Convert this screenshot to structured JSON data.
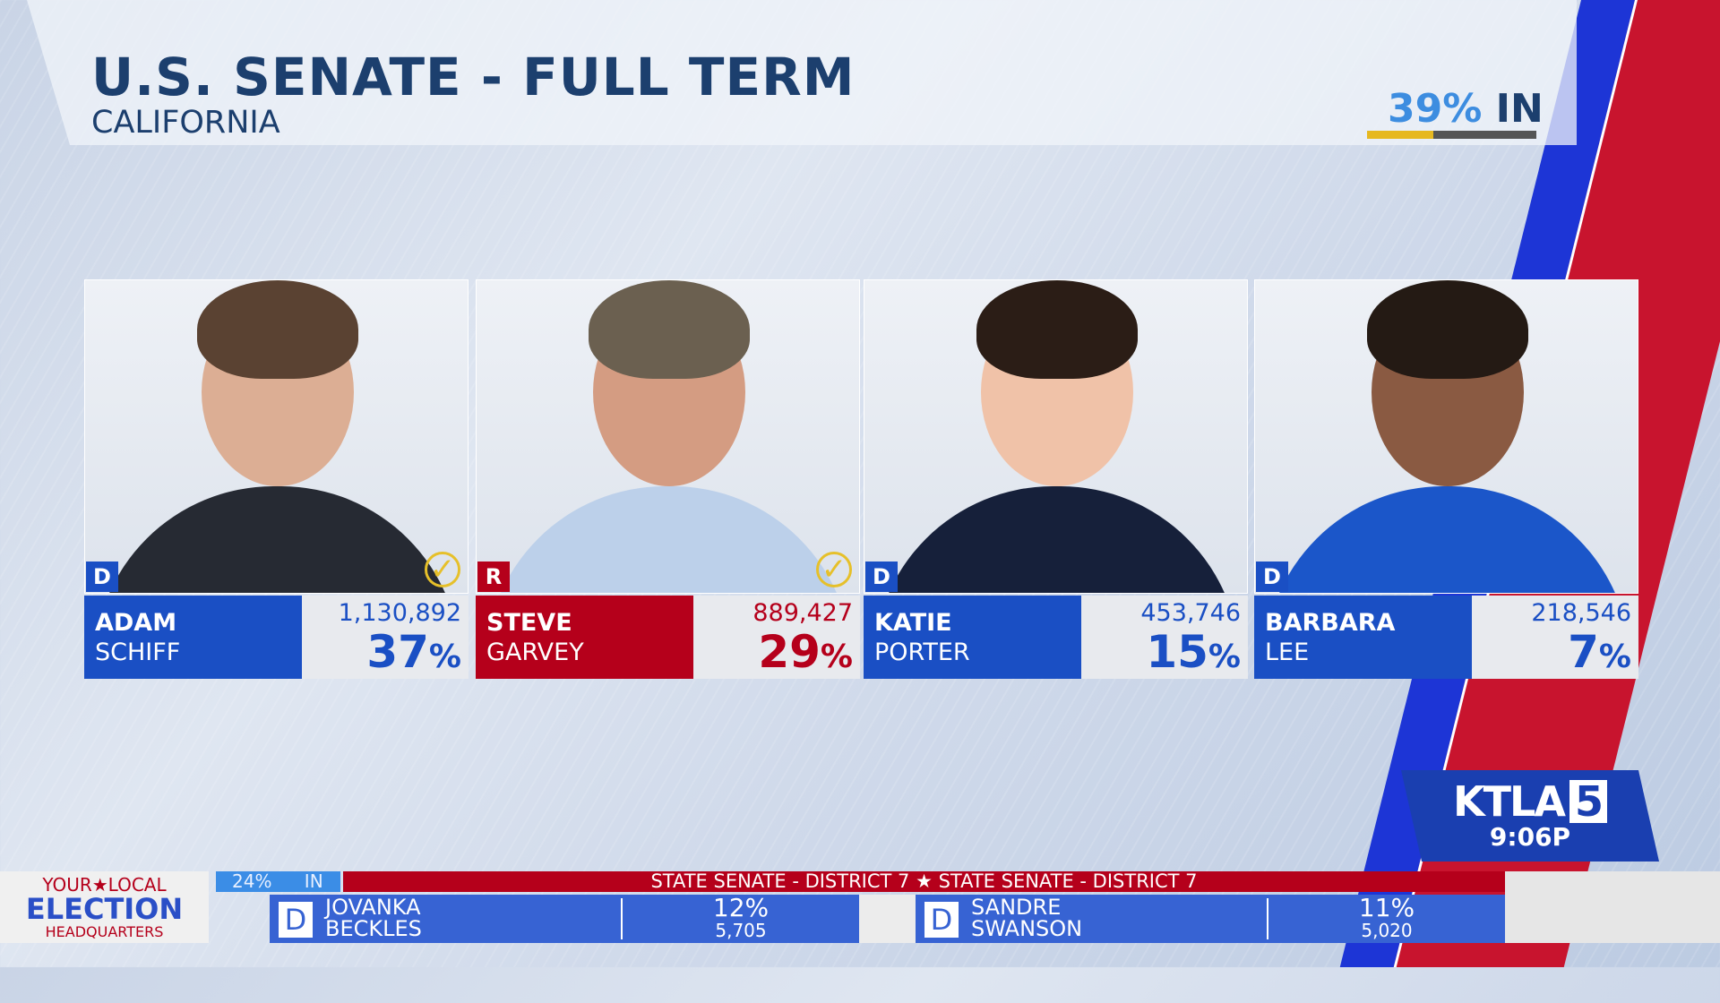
{
  "header": {
    "title": "U.S. SENATE - FULL TERM",
    "subtitle": "CALIFORNIA",
    "reporting_pct": "39%",
    "reporting_suffix": "IN",
    "reporting_fraction": 0.39
  },
  "colors": {
    "dem": "#1a4fc4",
    "rep": "#b5001b",
    "title": "#1c3f6e",
    "check": "#e6c02a"
  },
  "candidates": [
    {
      "first": "ADAM",
      "last": "SCHIFF",
      "party": "D",
      "votes": "1,130,892",
      "pct": "37",
      "pct_sign": "%",
      "advancing": true
    },
    {
      "first": "STEVE",
      "last": "GARVEY",
      "party": "R",
      "votes": "889,427",
      "pct": "29",
      "pct_sign": "%",
      "advancing": true
    },
    {
      "first": "KATIE",
      "last": "PORTER",
      "party": "D",
      "votes": "453,746",
      "pct": "15",
      "pct_sign": "%",
      "advancing": false
    },
    {
      "first": "BARBARA",
      "last": "LEE",
      "party": "D",
      "votes": "218,546",
      "pct": "7",
      "pct_sign": "%",
      "advancing": false
    }
  ],
  "station": {
    "logo": "KTLA",
    "channel": "5",
    "time": "9:06P"
  },
  "ticker": {
    "brand": {
      "line1": "YOUR★LOCAL",
      "line2": "ELECTION",
      "line3": "HEADQUARTERS"
    },
    "reporting": "24% IN",
    "headline": "STATE SENATE - DISTRICT 7 ★ STATE SENATE - DISTRICT 7",
    "rows": [
      {
        "party": "D",
        "first": "JOVANKA",
        "last": "BECKLES",
        "pct": "12%",
        "votes": "5,705"
      },
      {
        "party": "D",
        "first": "SANDRE",
        "last": "SWANSON",
        "pct": "11%",
        "votes": "5,020"
      }
    ]
  }
}
